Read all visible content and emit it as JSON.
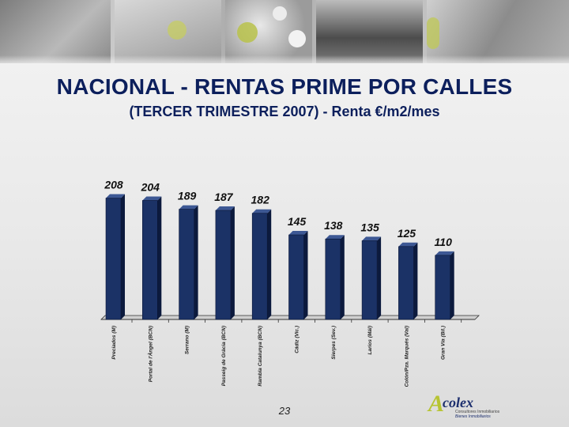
{
  "slide": {
    "title": "NACIONAL - RENTAS PRIME POR CALLES",
    "subtitle": "(TERCER TRIMESTRE 2007) - Renta €/m2/mes",
    "page_number": "23"
  },
  "logo": {
    "mark": "A",
    "name": "colex",
    "tagline_1": "Consultores Inmobiliarios",
    "tagline_2": "Bienes Inmobiliarios"
  },
  "colors": {
    "bar_front": "#1b3266",
    "bar_side": "#0c1a3d",
    "bar_top": "#3d5894",
    "axis": "#333333",
    "title": "#0c1f5c"
  },
  "chart_data": {
    "type": "bar",
    "title": "NACIONAL - RENTAS PRIME POR CALLES",
    "subtitle": "(TERCER TRIMESTRE 2007) - Renta €/m2/mes",
    "categories": [
      "Preciados (M)",
      "Portal de l'Àngel (BCN)",
      "Serrano (M)",
      "Passeig de Gràcia (BCN)",
      "Rambla Catalunya (BCN)",
      "Cádiz (Vic.)",
      "Sierpes (Sev.)",
      "Larios (Mál)",
      "Colón/Pza. Marqués (Val)",
      "Gran Vía (Bil.)"
    ],
    "values": [
      208,
      204,
      189,
      187,
      182,
      145,
      138,
      135,
      125,
      110
    ],
    "ylim": [
      0,
      220
    ],
    "grid": false,
    "legend": "none"
  }
}
